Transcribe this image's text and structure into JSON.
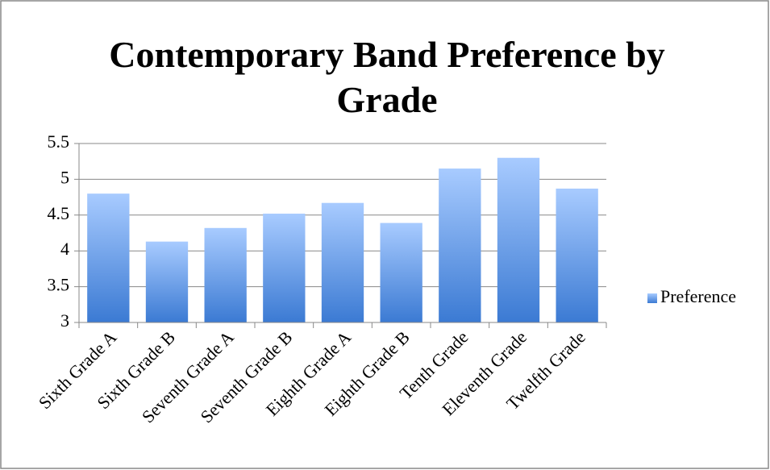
{
  "chart_data": {
    "type": "bar",
    "title": "Contemporary Band Preference by Grade",
    "categories": [
      "Sixth Grade A",
      "Sixth Grade B",
      "Seventh Grade A",
      "Seventh Grade B",
      "Eighth Grade A",
      "Eighth Grade B",
      "Tenth Grade",
      "Eleventh Grade",
      "Twelfth Grade"
    ],
    "series": [
      {
        "name": "Preference",
        "color": "#4a86d8",
        "values": [
          4.8,
          4.13,
          4.32,
          4.52,
          4.67,
          4.39,
          5.15,
          5.3,
          4.87
        ]
      }
    ],
    "ylim": [
      3,
      5.5
    ],
    "yticks": [
      3,
      3.5,
      4,
      4.5,
      5,
      5.5
    ],
    "grid": true,
    "legend": "right"
  }
}
